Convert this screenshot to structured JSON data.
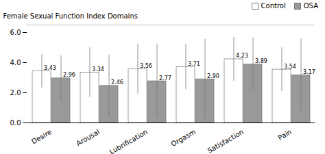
{
  "chart_data": {
    "type": "bar",
    "categories": [
      "Desire",
      "Arousal",
      "Lubrification",
      "Orgasm",
      "Satisfaction",
      "Pain"
    ],
    "series": [
      {
        "name": "Control",
        "color": "#ffffff",
        "values": [
          3.43,
          3.34,
          3.56,
          3.71,
          4.23,
          3.54
        ],
        "value_labels": [
          "3.43",
          "3.34",
          "3.56",
          "3.71",
          "4.23",
          "3.54"
        ],
        "errors": [
          1.1,
          1.65,
          1.65,
          1.5,
          1.45,
          1.45
        ]
      },
      {
        "name": "OSA",
        "color": "#999999",
        "values": [
          2.96,
          2.46,
          2.77,
          2.9,
          3.89,
          3.17
        ],
        "value_labels": [
          "2.96",
          "2.46",
          "2.77",
          "2.90",
          "3.89",
          "3.17"
        ],
        "errors": [
          1.5,
          2.05,
          2.45,
          2.65,
          1.75,
          2.4
        ]
      }
    ],
    "ylabel": "Female Sexual Function Index Domains",
    "ylim": [
      0,
      6.5
    ],
    "yticks": [
      0,
      2,
      4,
      6
    ],
    "legend": "upper-right",
    "data_labels": true,
    "grid": false
  }
}
